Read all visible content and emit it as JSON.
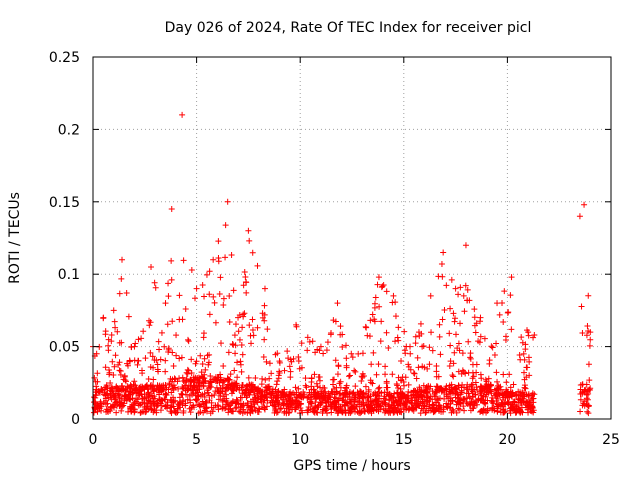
{
  "chart_data": {
    "type": "scatter",
    "title": "Day 026 of 2024, Rate Of TEC Index for receiver picl",
    "xlabel": "GPS time / hours",
    "ylabel": "ROTI / TECUs",
    "xlim": [
      0,
      25
    ],
    "ylim": [
      0,
      0.25
    ],
    "x_ticks": [
      "0",
      "5",
      "10",
      "15",
      "20",
      "25"
    ],
    "y_ticks": [
      "0",
      "0.05",
      "0.1",
      "0.15",
      "0.2",
      "0.25"
    ],
    "grid": true,
    "marker": "plus",
    "color": "#ff0000",
    "data_gap_hours": [
      21.3,
      23.5
    ],
    "envelope": [
      {
        "x": 0.0,
        "base": 0.015,
        "peak": 0.05
      },
      {
        "x": 0.5,
        "base": 0.02,
        "peak": 0.07
      },
      {
        "x": 1.0,
        "base": 0.02,
        "peak": 0.075
      },
      {
        "x": 1.4,
        "base": 0.02,
        "peak": 0.11
      },
      {
        "x": 2.0,
        "base": 0.02,
        "peak": 0.05
      },
      {
        "x": 2.8,
        "base": 0.02,
        "peak": 0.105
      },
      {
        "x": 3.5,
        "base": 0.02,
        "peak": 0.08
      },
      {
        "x": 3.8,
        "base": 0.025,
        "peak": 0.145
      },
      {
        "x": 4.3,
        "base": 0.025,
        "peak": 0.21
      },
      {
        "x": 5.0,
        "base": 0.025,
        "peak": 0.09
      },
      {
        "x": 5.8,
        "base": 0.025,
        "peak": 0.11
      },
      {
        "x": 6.5,
        "base": 0.025,
        "peak": 0.15
      },
      {
        "x": 7.0,
        "base": 0.02,
        "peak": 0.07
      },
      {
        "x": 7.5,
        "base": 0.02,
        "peak": 0.13
      },
      {
        "x": 8.3,
        "base": 0.02,
        "peak": 0.09
      },
      {
        "x": 9.0,
        "base": 0.015,
        "peak": 0.04
      },
      {
        "x": 9.8,
        "base": 0.015,
        "peak": 0.065
      },
      {
        "x": 11.0,
        "base": 0.015,
        "peak": 0.05
      },
      {
        "x": 11.8,
        "base": 0.015,
        "peak": 0.08
      },
      {
        "x": 12.8,
        "base": 0.015,
        "peak": 0.045
      },
      {
        "x": 13.8,
        "base": 0.015,
        "peak": 0.098
      },
      {
        "x": 14.5,
        "base": 0.015,
        "peak": 0.085
      },
      {
        "x": 15.3,
        "base": 0.015,
        "peak": 0.05
      },
      {
        "x": 16.3,
        "base": 0.02,
        "peak": 0.085
      },
      {
        "x": 16.9,
        "base": 0.02,
        "peak": 0.115
      },
      {
        "x": 17.5,
        "base": 0.02,
        "peak": 0.09
      },
      {
        "x": 18.0,
        "base": 0.02,
        "peak": 0.12
      },
      {
        "x": 18.7,
        "base": 0.02,
        "peak": 0.07
      },
      {
        "x": 19.5,
        "base": 0.02,
        "peak": 0.08
      },
      {
        "x": 20.2,
        "base": 0.015,
        "peak": 0.098
      },
      {
        "x": 21.0,
        "base": 0.015,
        "peak": 0.06
      },
      {
        "x": 21.3,
        "base": 0.015,
        "peak": 0.058
      },
      {
        "x": 23.5,
        "base": 0.02,
        "peak": 0.14
      },
      {
        "x": 23.7,
        "base": 0.02,
        "peak": 0.148
      },
      {
        "x": 24.0,
        "base": 0.02,
        "peak": 0.06
      }
    ]
  }
}
